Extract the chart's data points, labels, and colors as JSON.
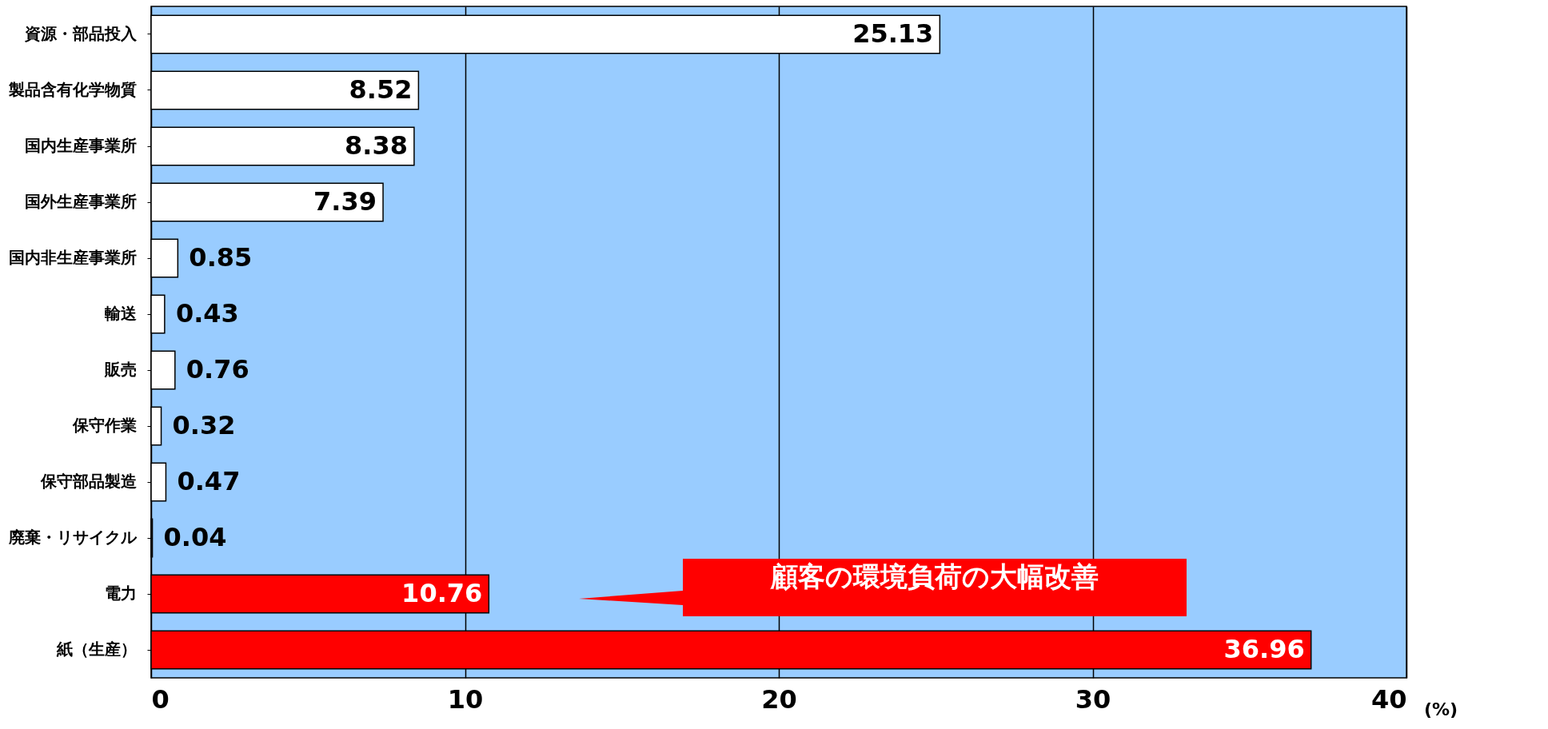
{
  "chart_data": {
    "type": "bar",
    "orientation": "horizontal",
    "categories": [
      "資源・部品投入",
      "製品含有化学物質",
      "国内生産事業所",
      "国外生産事業所",
      "国内非生産事業所",
      "輸送",
      "販売",
      "保守作業",
      "保守部品製造",
      "廃棄・リサイクル",
      "電力",
      "紙（生産）"
    ],
    "values": [
      25.13,
      8.52,
      8.38,
      7.39,
      0.85,
      0.43,
      0.76,
      0.32,
      0.47,
      0.04,
      10.76,
      36.96
    ],
    "colors": [
      "#ffffff",
      "#ffffff",
      "#ffffff",
      "#ffffff",
      "#ffffff",
      "#ffffff",
      "#ffffff",
      "#ffffff",
      "#ffffff",
      "#ffffff",
      "#ff0000",
      "#ff0000"
    ],
    "data_labels": true,
    "xlabel": "(%)",
    "xlim": [
      0,
      40
    ],
    "xticks": [
      0,
      10,
      20,
      30,
      40
    ],
    "grid": "x",
    "annotations": [
      "顧客の環境負荷の大幅改善"
    ]
  }
}
